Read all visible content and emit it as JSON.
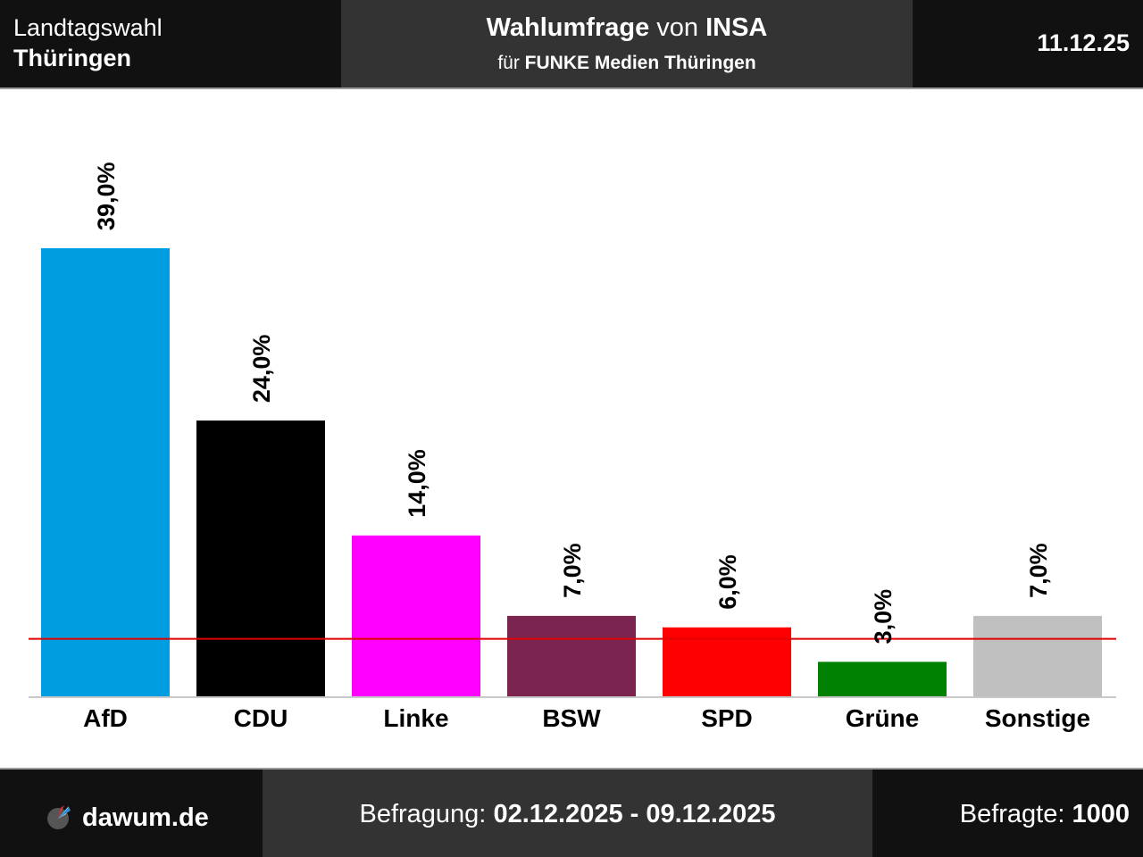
{
  "header": {
    "election_type": "Landtagswahl",
    "state": "Thüringen",
    "poll_prefix": "Wahlumfrage",
    "poll_connector": "von",
    "institute": "INSA",
    "client_prefix": "für",
    "client": "FUNKE Medien Thüringen",
    "date": "11.12.25"
  },
  "footer": {
    "brand": "dawum.de",
    "survey_label": "Befragung:",
    "survey_period": "02.12.2025 - 09.12.2025",
    "respondents_label": "Befragte:",
    "respondents": "1000"
  },
  "chart_data": {
    "type": "bar",
    "categories": [
      "AfD",
      "CDU",
      "Linke",
      "BSW",
      "SPD",
      "Grüne",
      "Sonstige"
    ],
    "values": [
      39.0,
      24.0,
      14.0,
      7.0,
      6.0,
      3.0,
      7.0
    ],
    "value_labels": [
      "39,0%",
      "24,0%",
      "14,0%",
      "7,0%",
      "6,0%",
      "3,0%",
      "7,0%"
    ],
    "colors": [
      "#009ee0",
      "#000000",
      "#ff00ff",
      "#7b2450",
      "#ff0000",
      "#008000",
      "#c0c0c0"
    ],
    "threshold": 5,
    "threshold_color": "#e00000",
    "ylim": [
      0,
      42
    ],
    "grid": false
  }
}
